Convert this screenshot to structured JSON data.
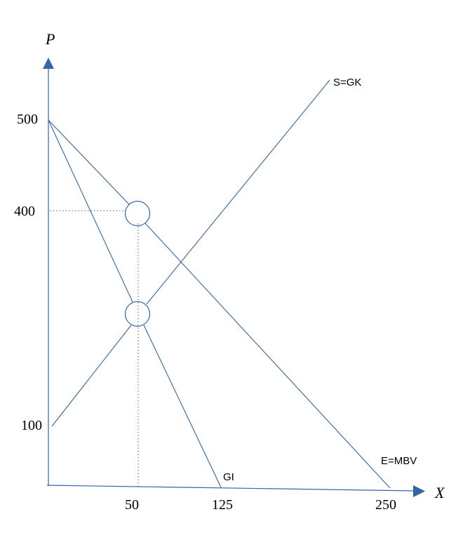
{
  "axes": {
    "x_label": "X",
    "y_label": "P",
    "x_ticks": [
      "50",
      "125",
      "250"
    ],
    "y_ticks": [
      "500",
      "400",
      "100"
    ]
  },
  "curve_labels": {
    "supply": "S=GK",
    "demand": "E=MBV",
    "marginal": "GI"
  },
  "colors": {
    "line": "#3465a4",
    "arrow": "#3465a4",
    "text": "#000000"
  },
  "chart_data": {
    "type": "line",
    "xlabel": "X",
    "ylabel": "P",
    "series": [
      {
        "name": "S=GK",
        "x": [
          0,
          50
        ],
        "y": [
          100,
          250
        ]
      },
      {
        "name": "E=MBV",
        "x": [
          0,
          250
        ],
        "y": [
          500,
          0
        ]
      },
      {
        "name": "GI",
        "x": [
          0,
          125
        ],
        "y": [
          500,
          0
        ]
      }
    ],
    "marked_points": [
      {
        "x": 50,
        "y": 400
      },
      {
        "x": 50,
        "y": 250
      }
    ]
  }
}
